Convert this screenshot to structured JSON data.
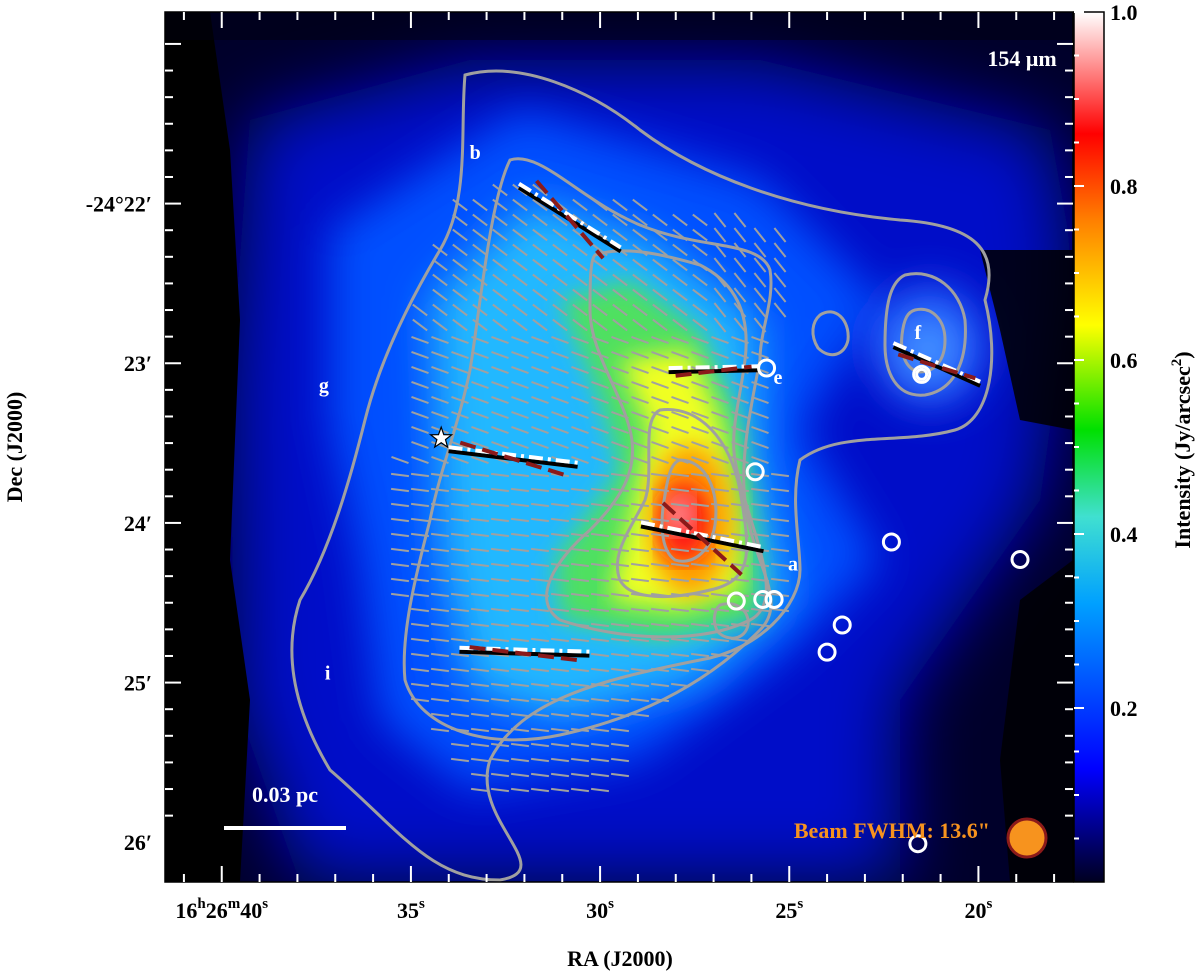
{
  "chart_data": {
    "type": "heatmap",
    "wavelength_label": "154 μm",
    "xlabel": "RA (J2000)",
    "ylabel": "Dec (J2000)",
    "colorbar": {
      "label": "Intensity (Jy/arcsec",
      "label_sup": "2",
      "label_end": ")",
      "range": [
        0.0,
        1.0
      ],
      "ticks": [
        "0.2",
        "0.4",
        "0.6",
        "0.8",
        "1.0"
      ],
      "tick_values": [
        0.2,
        0.4,
        0.6,
        0.8,
        1.0
      ],
      "colormap": [
        "#000020",
        "#0000ff",
        "#00a0ff",
        "#40e0d0",
        "#00e000",
        "#ffff00",
        "#ff8000",
        "#ff0000",
        "#ffffff"
      ]
    },
    "xaxis": {
      "range_sec": [
        41.5,
        17.5
      ],
      "ticks": [
        {
          "sec": 40,
          "lbl": "16",
          "h": "h",
          "m_num": "26",
          "m": "m",
          "s_num": "40",
          "s": "s"
        },
        {
          "sec": 35,
          "lbl": "35",
          "s": "s"
        },
        {
          "sec": 30,
          "lbl": "30",
          "s": "s"
        },
        {
          "sec": 25,
          "lbl": "25",
          "s": "s"
        },
        {
          "sec": 20,
          "lbl": "20",
          "s": "s"
        }
      ]
    },
    "yaxis": {
      "range_arcmin": [
        20.8,
        26.25
      ],
      "ticks": [
        {
          "arcmin": 22,
          "lbl": "-24°22′"
        },
        {
          "arcmin": 23,
          "lbl": "23′"
        },
        {
          "arcmin": 24,
          "lbl": "24′"
        },
        {
          "arcmin": 25,
          "lbl": "25′"
        },
        {
          "arcmin": 26,
          "lbl": "26′"
        }
      ]
    },
    "regions": [
      {
        "name": "a",
        "ra": 24.9,
        "dec": 24.3
      },
      {
        "name": "b",
        "ra": 33.3,
        "dec": 21.72
      },
      {
        "name": "e",
        "ra": 25.3,
        "dec": 23.13
      },
      {
        "name": "f",
        "ra": 21.6,
        "dec": 22.85
      },
      {
        "name": "g",
        "ra": 37.3,
        "dec": 23.18
      },
      {
        "name": "i",
        "ra": 37.2,
        "dec": 24.98
      }
    ],
    "compact_sources": [
      {
        "ra": 25.6,
        "dec": 23.03
      },
      {
        "ra": 21.5,
        "dec": 23.07
      },
      {
        "ra": 25.9,
        "dec": 23.68
      },
      {
        "ra": 26.4,
        "dec": 24.49
      },
      {
        "ra": 25.7,
        "dec": 24.48
      },
      {
        "ra": 25.4,
        "dec": 24.48
      },
      {
        "ra": 22.3,
        "dec": 24.12
      },
      {
        "ra": 18.9,
        "dec": 24.23
      },
      {
        "ra": 23.6,
        "dec": 24.64
      },
      {
        "ra": 24.0,
        "dec": 24.81
      },
      {
        "ra": 21.6,
        "dec": 26.01
      }
    ],
    "star": {
      "ra": 34.2,
      "dec": 23.47
    },
    "scale_bar": {
      "label": "0.03 pc"
    },
    "beam": {
      "label": "Beam FWHM: 13.6\"",
      "color": "#f7931e"
    },
    "colors": {
      "contour": "#a0a0a0",
      "vector": "#a0a0a0",
      "dark_red": "#8b1a1a"
    }
  }
}
